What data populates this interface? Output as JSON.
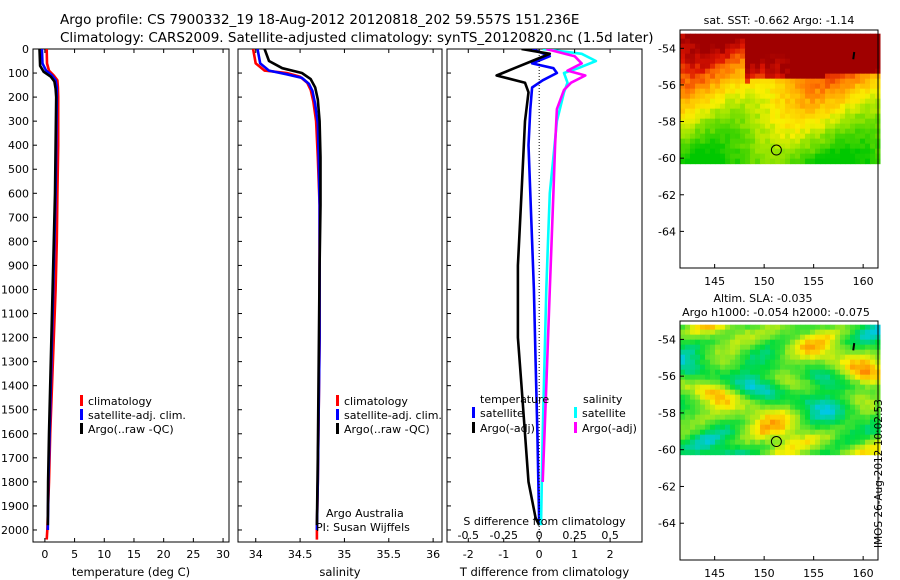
{
  "header": {
    "line1": "Argo profile: CS 7900332_19 18-Aug-2012 20120818_202 59.557S 151.236E",
    "line2": "Climatology: CARS2009. Satellite-adjusted climatology: synTS_20120820.nc (1.5d later)"
  },
  "timestamp": "IMOS 26-Aug-2012 10:02:53",
  "colors": {
    "climatology": "#ff0000",
    "satellite": "#0000ff",
    "argo": "#000000",
    "salinity_satellite": "#00ffff",
    "salinity_argo": "#ff00ff"
  },
  "chart_data": [
    {
      "id": "temperature",
      "type": "line",
      "xlabel": "temperature (deg C)",
      "xlim": [
        -2,
        31
      ],
      "xticks": [
        0,
        5,
        10,
        15,
        20,
        25,
        30
      ],
      "ylim": [
        0,
        2050
      ],
      "yticks": [
        0,
        100,
        200,
        300,
        400,
        500,
        600,
        700,
        800,
        900,
        1000,
        1100,
        1200,
        1300,
        1400,
        1500,
        1600,
        1700,
        1800,
        1900,
        2000
      ],
      "legend": [
        "climatology",
        "satellite-adj. clim.",
        "Argo(..raw -QC)"
      ],
      "series": [
        {
          "name": "climatology",
          "color": "red",
          "x": [
            0.3,
            0.35,
            0.7,
            1.5,
            2.1,
            2.2,
            2.25,
            2.25,
            2.1,
            2.0,
            1.8,
            1.5,
            1.2,
            0.9,
            0.7,
            0.4,
            0.3
          ],
          "y": [
            0,
            60,
            90,
            110,
            130,
            160,
            200,
            400,
            600,
            800,
            1000,
            1200,
            1400,
            1600,
            1800,
            2000,
            2040
          ]
        },
        {
          "name": "satellite-adj. clim.",
          "color": "blue",
          "x": [
            -0.5,
            -0.4,
            0.2,
            1.2,
            1.8,
            2.0,
            2.0,
            1.9,
            1.8,
            1.6,
            1.4,
            1.2,
            1.0,
            0.8,
            0.6,
            0.5
          ],
          "y": [
            0,
            60,
            90,
            110,
            130,
            160,
            200,
            400,
            600,
            800,
            1000,
            1200,
            1400,
            1600,
            1800,
            2000
          ]
        },
        {
          "name": "Argo(..raw -QC)",
          "color": "black",
          "x": [
            -0.9,
            -0.8,
            -0.2,
            1.0,
            1.6,
            1.8,
            1.9,
            1.8,
            1.7,
            1.5,
            1.3,
            1.1,
            0.9,
            0.7,
            0.55,
            0.5
          ],
          "y": [
            0,
            70,
            95,
            115,
            135,
            165,
            200,
            400,
            600,
            800,
            1000,
            1200,
            1400,
            1600,
            1800,
            1980
          ]
        }
      ]
    },
    {
      "id": "salinity",
      "type": "line",
      "xlabel": "salinity",
      "xlim": [
        33.8,
        36.1
      ],
      "xticks": [
        34,
        34.5,
        35,
        35.5,
        36
      ],
      "xticklabels": [
        "34",
        "34.5",
        "35",
        "35.5",
        "36"
      ],
      "ylim": [
        0,
        2050
      ],
      "legend": [
        "climatology",
        "satellite-adj. clim.",
        "Argo(..raw -QC)"
      ],
      "annotation": [
        "Argo Australia",
        "PI: Susan Wijffels"
      ],
      "series": [
        {
          "name": "climatology",
          "color": "red",
          "x": [
            33.97,
            34.0,
            34.1,
            34.35,
            34.5,
            34.58,
            34.62,
            34.65,
            34.68,
            34.7,
            34.72,
            34.72,
            34.72,
            34.71,
            34.7,
            34.69,
            34.69
          ],
          "y": [
            0,
            60,
            90,
            100,
            115,
            140,
            170,
            220,
            300,
            450,
            650,
            900,
            1200,
            1500,
            1800,
            2000,
            2040
          ]
        },
        {
          "name": "satellite-adj. clim.",
          "color": "blue",
          "x": [
            34.02,
            34.05,
            34.15,
            34.35,
            34.52,
            34.6,
            34.64,
            34.67,
            34.7,
            34.71,
            34.72,
            34.72,
            34.72,
            34.71,
            34.7,
            34.69
          ],
          "y": [
            0,
            60,
            90,
            105,
            120,
            145,
            175,
            230,
            310,
            460,
            650,
            900,
            1200,
            1500,
            1800,
            2000
          ]
        },
        {
          "name": "Argo(..raw -QC)",
          "color": "black",
          "x": [
            34.1,
            34.15,
            34.3,
            34.52,
            34.62,
            34.67,
            34.7,
            34.72,
            34.73,
            34.73,
            34.72,
            34.71,
            34.7,
            34.69
          ],
          "y": [
            0,
            50,
            80,
            100,
            125,
            160,
            210,
            300,
            450,
            650,
            900,
            1300,
            1700,
            1980
          ]
        }
      ]
    },
    {
      "id": "difference",
      "type": "line",
      "xlabel": "T difference from climatology",
      "top_label": "S difference from climatology",
      "xlim": [
        -2.6,
        2.9
      ],
      "xticks": [
        -2,
        -1,
        0,
        1,
        2
      ],
      "top_ticks": [
        "-0.5",
        "-0.25",
        "0",
        "0.25",
        "0.5"
      ],
      "ylim": [
        0,
        2050
      ],
      "legend_titles": [
        "temperature",
        "salinity"
      ],
      "legend": [
        "satellite",
        "Argo(-adj)",
        "satellite",
        "Argo(-adj)"
      ],
      "series": [
        {
          "name": "temperature satellite",
          "color": "blue",
          "x": [
            -0.2,
            0.3,
            -0.2,
            0.4,
            0.5,
            0.1,
            -0.2,
            -0.25,
            -0.3,
            -0.25,
            -0.2,
            -0.15,
            -0.1,
            -0.05,
            0.0
          ],
          "y": [
            0,
            30,
            60,
            80,
            100,
            130,
            160,
            250,
            400,
            600,
            800,
            1000,
            1300,
            1600,
            1980
          ]
        },
        {
          "name": "temperature Argo(-adj)",
          "color": "black",
          "x": [
            -0.5,
            0.3,
            -0.2,
            -0.7,
            -1.2,
            -0.4,
            -0.3,
            -0.4,
            -0.5,
            -0.6,
            -0.6,
            -0.5,
            -0.4,
            -0.3,
            -0.1,
            0.0
          ],
          "y": [
            0,
            20,
            50,
            80,
            110,
            140,
            180,
            300,
            600,
            900,
            1200,
            1400,
            1600,
            1800,
            1950,
            1980
          ]
        },
        {
          "name": "salinity satellite",
          "color": "cyan",
          "x": [
            0.1,
            1.2,
            1.6,
            1.1,
            0.7,
            0.8,
            0.7,
            0.5,
            0.4,
            0.3,
            0.25,
            0.2,
            0.15,
            0.1,
            0.05
          ],
          "y": [
            0,
            20,
            50,
            80,
            100,
            140,
            180,
            300,
            450,
            600,
            800,
            1000,
            1300,
            1600,
            1980
          ]
        },
        {
          "name": "salinity Argo(-adj)",
          "color": "magenta",
          "x": [
            0.2,
            1.0,
            1.2,
            0.8,
            1.3,
            0.9,
            0.7,
            0.5,
            0.45,
            0.4,
            0.35,
            0.3,
            0.2,
            0.1
          ],
          "y": [
            0,
            30,
            60,
            90,
            110,
            140,
            170,
            250,
            400,
            600,
            800,
            1000,
            1400,
            1800
          ]
        }
      ]
    },
    {
      "id": "sst_map",
      "type": "heatmap",
      "title": "sat. SST: -0.662 Argo: -1.14",
      "xlim": [
        141.5,
        161.5
      ],
      "ylim": [
        -66,
        -53
      ],
      "xticks": [
        145,
        150,
        155,
        160
      ],
      "yticks": [
        -54,
        -56,
        -58,
        -60,
        -62,
        -64
      ],
      "data_extent": [
        -60.1,
        -53.2
      ],
      "float_position": [
        151.236,
        -59.557
      ],
      "colormap": "red-orange-yellow-green"
    },
    {
      "id": "sla_map",
      "type": "heatmap",
      "title": "Altim. SLA: -0.035",
      "subtitle": "Argo h1000: -0.054 h2000: -0.075",
      "xlim": [
        141.5,
        161.5
      ],
      "ylim": [
        -66,
        -53
      ],
      "xticks": [
        145,
        150,
        155,
        160
      ],
      "yticks": [
        -54,
        -56,
        -58,
        -60,
        -62,
        -64
      ],
      "data_extent": [
        -60.1,
        -53.2
      ],
      "float_position": [
        151.236,
        -59.557
      ],
      "colormap": "blue-cyan-green-yellow-red"
    }
  ]
}
